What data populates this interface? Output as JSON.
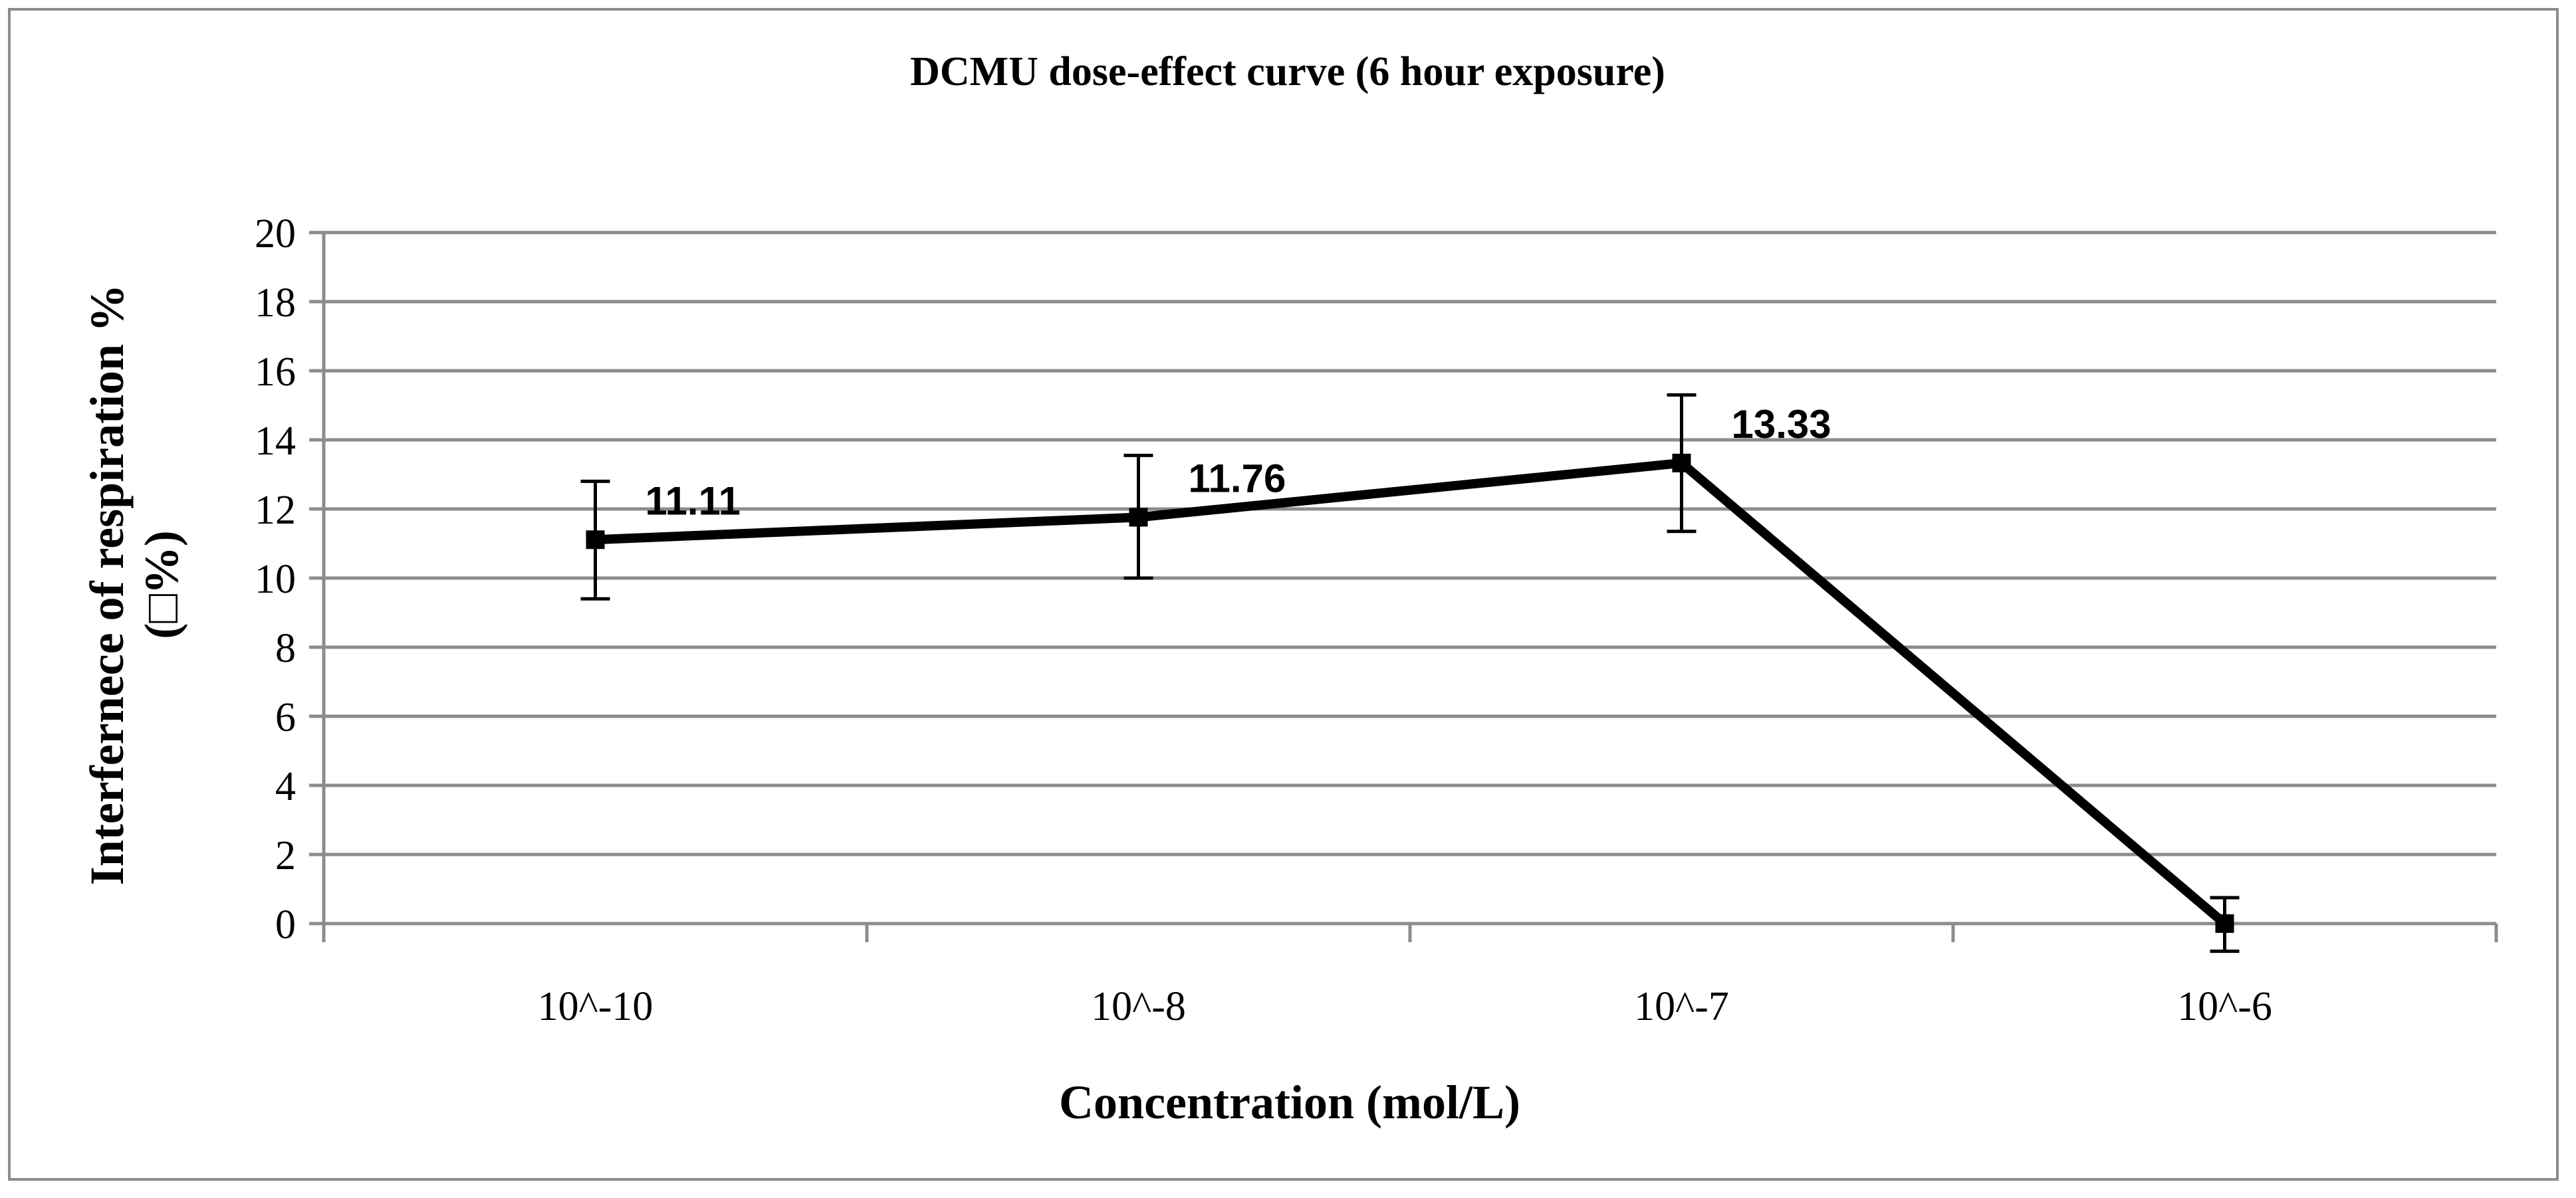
{
  "chart_data": {
    "type": "line",
    "title": "DCMU dose-effect curve (6 hour exposure)",
    "xlabel": "Concentration (mol/L)",
    "ylabel_line1": "Interfernece of respiration %",
    "ylabel_line2": "(□%)",
    "categories": [
      "10^-10",
      "10^-8",
      "10^-7",
      "10^-6"
    ],
    "series": [
      {
        "name": "Interference of respiration",
        "values": [
          11.11,
          11.76,
          13.33,
          0.0
        ],
        "error_low": [
          9.4,
          10.0,
          11.35,
          -0.8
        ],
        "error_high": [
          12.8,
          13.55,
          15.3,
          0.75
        ],
        "data_labels": [
          "11.11",
          "11.76",
          "13.33",
          ""
        ]
      }
    ],
    "ylim": [
      0,
      20
    ],
    "yticks": [
      0,
      2,
      4,
      6,
      8,
      10,
      12,
      14,
      16,
      18,
      20
    ],
    "grid": true,
    "colors": {
      "line": "#000000",
      "grid": "#8c8c8c",
      "axis": "#8c8c8c",
      "text": "#000000"
    }
  }
}
